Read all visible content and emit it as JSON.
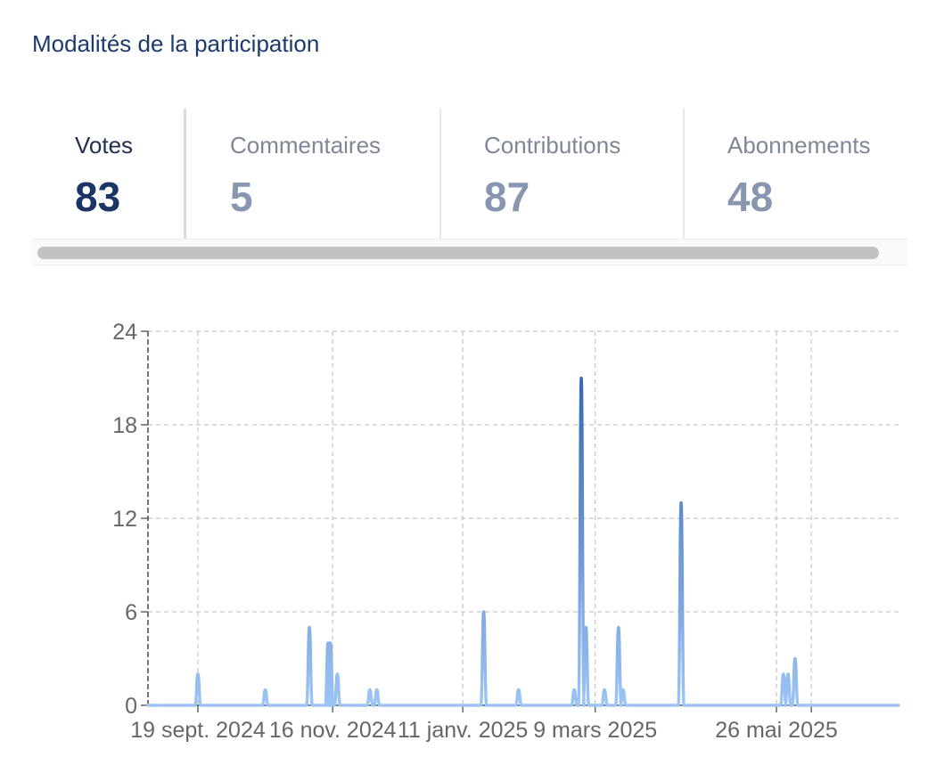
{
  "section": {
    "title": "Modalités de la participation"
  },
  "tabs": [
    {
      "label": "Votes",
      "count": "83",
      "active": true
    },
    {
      "label": "Commentaires",
      "count": "5",
      "active": false
    },
    {
      "label": "Contributions",
      "count": "87",
      "active": false
    },
    {
      "label": "Abonnements",
      "count": "48",
      "active": false
    }
  ],
  "colors": {
    "title": "#1c3a6e",
    "active_count": "#1b3566",
    "inactive_count": "#8896b0",
    "line_low": "#9cc4f5",
    "line_high": "#2a5aa8"
  },
  "chart_data": {
    "type": "line",
    "series_label": "",
    "x_start": "2024-09-10",
    "x_end": "2025-06-10",
    "x_ticks": [
      {
        "date": "2024-09-19",
        "label": "19 sept. 2024"
      },
      {
        "date": "2024-11-16",
        "label": "16 nov. 2024"
      },
      {
        "date": "2025-01-11",
        "label": "11 janv. 2025"
      },
      {
        "date": "2025-03-09",
        "label": "9 mars 2025"
      },
      {
        "date": "2025-05-26",
        "label": "26 mai 2025"
      }
    ],
    "extra_grid_dates": [
      "2025-06-10"
    ],
    "y_ticks": [
      0,
      6,
      12,
      18,
      24
    ],
    "ylim": [
      0,
      24
    ],
    "grid": true,
    "points": [
      {
        "x": "2024-09-19",
        "y": 2
      },
      {
        "x": "2024-10-18",
        "y": 1
      },
      {
        "x": "2024-11-06",
        "y": 5
      },
      {
        "x": "2024-11-14",
        "y": 4
      },
      {
        "x": "2024-11-15",
        "y": 4
      },
      {
        "x": "2024-11-18",
        "y": 2
      },
      {
        "x": "2024-12-02",
        "y": 1
      },
      {
        "x": "2024-12-05",
        "y": 1
      },
      {
        "x": "2025-01-20",
        "y": 6
      },
      {
        "x": "2025-02-04",
        "y": 1
      },
      {
        "x": "2025-02-28",
        "y": 1
      },
      {
        "x": "2025-03-03",
        "y": 21
      },
      {
        "x": "2025-03-05",
        "y": 5
      },
      {
        "x": "2025-03-13",
        "y": 1
      },
      {
        "x": "2025-03-19",
        "y": 5
      },
      {
        "x": "2025-03-21",
        "y": 1
      },
      {
        "x": "2025-04-15",
        "y": 13
      },
      {
        "x": "2025-05-29",
        "y": 2
      },
      {
        "x": "2025-05-31",
        "y": 2
      },
      {
        "x": "2025-06-03",
        "y": 3
      }
    ]
  }
}
